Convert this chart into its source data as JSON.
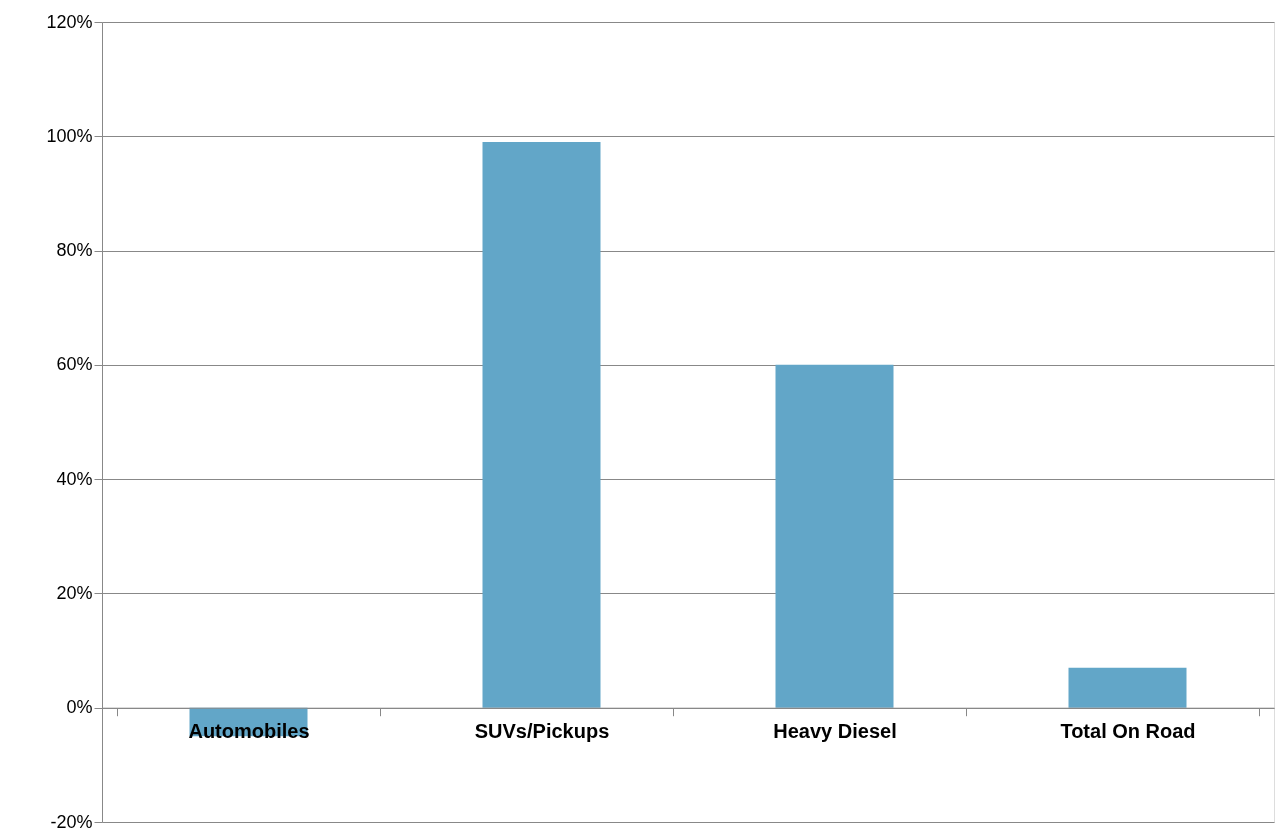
{
  "chart_data": {
    "type": "bar",
    "categories": [
      "Automobiles",
      "SUVs/Pickups",
      "Heavy Diesel",
      "Total On Road"
    ],
    "values": [
      -5,
      99,
      60,
      7
    ],
    "color": "#62a6c8",
    "ylim": [
      -20,
      120
    ],
    "yticks": [
      {
        "value": -20,
        "label": "-20%"
      },
      {
        "value": 0,
        "label": "0%"
      },
      {
        "value": 20,
        "label": "20%"
      },
      {
        "value": 40,
        "label": "40%"
      },
      {
        "value": 60,
        "label": "60%"
      },
      {
        "value": 80,
        "label": "80%"
      },
      {
        "value": 100,
        "label": "100%"
      },
      {
        "value": 120,
        "label": "120%"
      }
    ],
    "grid": "y"
  }
}
